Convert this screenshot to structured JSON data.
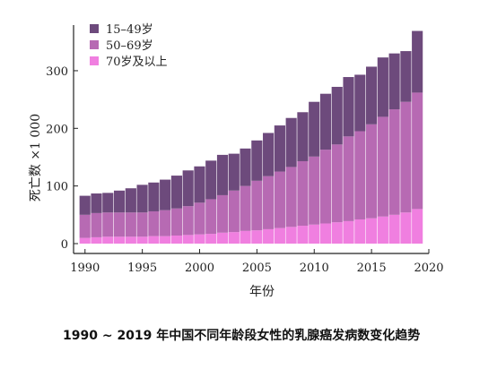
{
  "caption": "1990 ~ 2019 年中国不同年龄段女性的乳腺癌发病数变化趋势",
  "chart_data": {
    "type": "bar",
    "stacked": true,
    "xlabel": "年份",
    "ylabel": "死亡数 ×1 000",
    "ylim": [
      0,
      375
    ],
    "xlim": [
      1989,
      2020
    ],
    "x_ticks": [
      1990,
      1995,
      2000,
      2005,
      2010,
      2015,
      2020
    ],
    "y_ticks": [
      0,
      100,
      200,
      300
    ],
    "legend_position": "top-left",
    "categories": [
      1990,
      1991,
      1992,
      1993,
      1994,
      1995,
      1996,
      1997,
      1998,
      1999,
      2000,
      2001,
      2002,
      2003,
      2004,
      2005,
      2006,
      2007,
      2008,
      2009,
      2010,
      2011,
      2012,
      2013,
      2014,
      2015,
      2016,
      2017,
      2018,
      2019
    ],
    "series": [
      {
        "name": "70岁及以上",
        "color": "#f07fe0",
        "values": [
          10,
          11,
          12,
          12,
          12,
          12,
          13,
          13,
          14,
          15,
          16,
          17,
          19,
          20,
          22,
          23,
          25,
          27,
          29,
          31,
          33,
          35,
          37,
          39,
          42,
          44,
          47,
          50,
          54,
          60
        ]
      },
      {
        "name": "50–69岁",
        "color": "#b76ab3",
        "values": [
          40,
          42,
          42,
          42,
          42,
          42,
          43,
          45,
          47,
          50,
          55,
          60,
          65,
          72,
          78,
          86,
          92,
          98,
          104,
          112,
          118,
          128,
          135,
          147,
          153,
          163,
          173,
          183,
          192,
          202
        ]
      },
      {
        "name": "15–49岁",
        "color": "#6d4a7c",
        "values": [
          33,
          34,
          34,
          38,
          42,
          48,
          50,
          53,
          57,
          62,
          63,
          67,
          70,
          64,
          65,
          70,
          75,
          80,
          85,
          85,
          95,
          97,
          100,
          103,
          98,
          100,
          103,
          97,
          88,
          107
        ]
      }
    ]
  }
}
